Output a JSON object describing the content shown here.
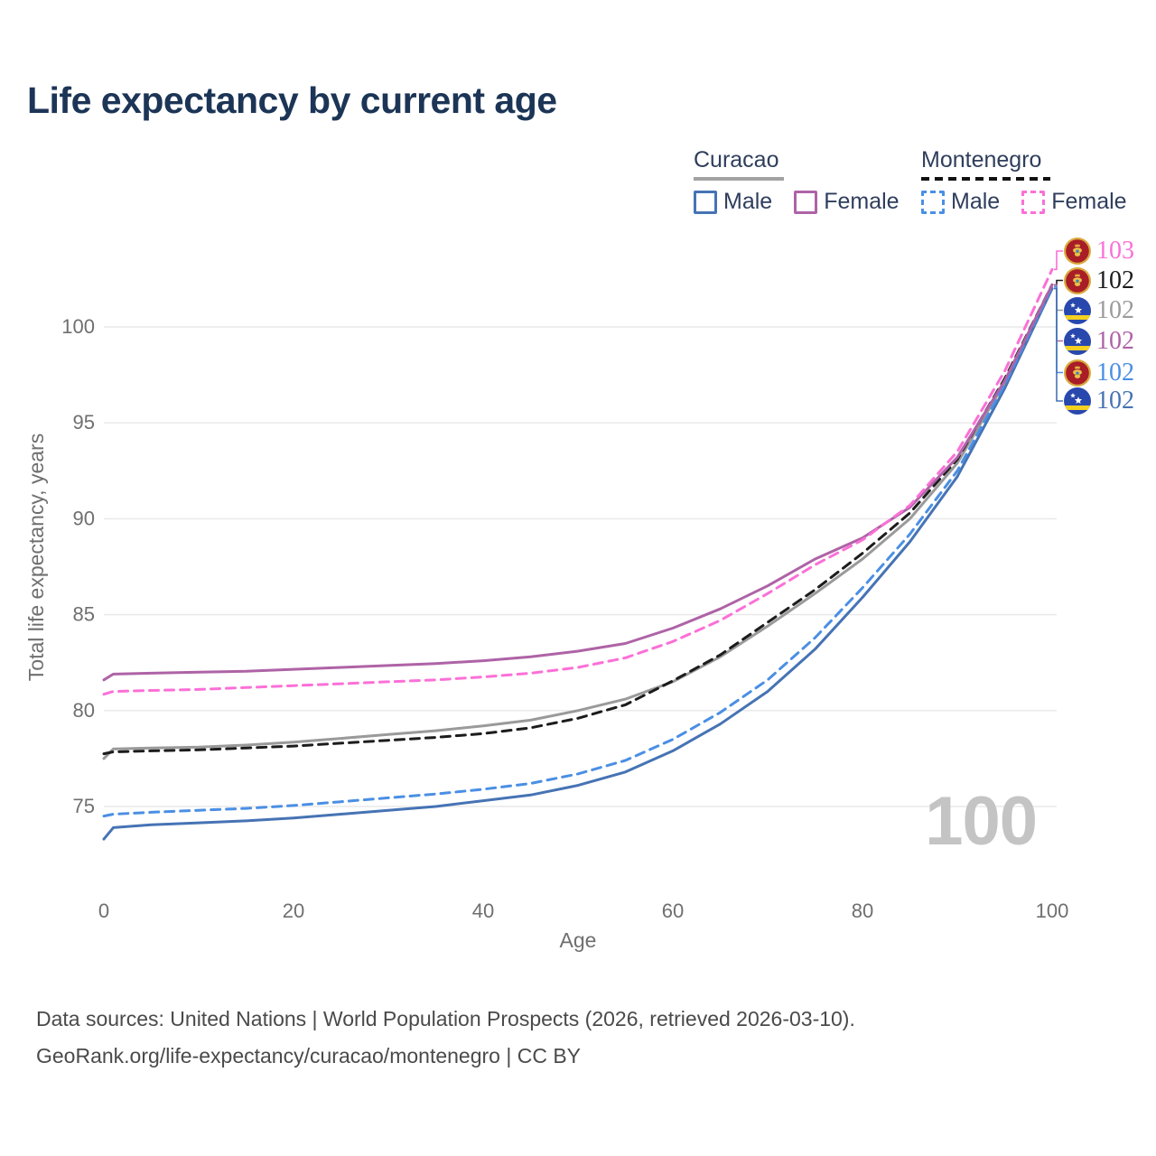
{
  "title": "Life expectancy by current age",
  "watermark": "100",
  "colors": {
    "title_text": "#1c3556",
    "legend_text": "#2f3e5c",
    "grid": "#e8e8e8",
    "axis_text": "#6f6f6f",
    "watermark_gray": "#c4c4c4",
    "footer_text": "#4a4a4a"
  },
  "legend": {
    "groups": [
      {
        "name": "Curacao",
        "line_style": "solid",
        "underline_color": "#a2a2a2",
        "items": [
          {
            "label": "Male",
            "series": "curacao_male"
          },
          {
            "label": "Female",
            "series": "curacao_female"
          }
        ]
      },
      {
        "name": "Montenegro",
        "line_style": "dashed",
        "underline_color": "#111111",
        "items": [
          {
            "label": "Male",
            "series": "montenegro_male"
          },
          {
            "label": "Female",
            "series": "montenegro_female"
          }
        ]
      }
    ]
  },
  "chart_data": {
    "type": "line",
    "title": "Life expectancy by current age",
    "xlabel": "Age",
    "ylabel": "Total life expectancy, years",
    "xticks": [
      0,
      20,
      40,
      60,
      80,
      100
    ],
    "yticks": [
      75,
      80,
      85,
      90,
      95,
      100
    ],
    "xlim": [
      0,
      100
    ],
    "ylim": [
      72.5,
      104
    ],
    "grid": "horizontal",
    "ages": [
      0,
      1,
      5,
      10,
      15,
      20,
      25,
      30,
      35,
      40,
      45,
      50,
      55,
      60,
      65,
      70,
      75,
      80,
      85,
      90,
      95,
      100
    ],
    "series": [
      {
        "key": "curacao_total",
        "name": "Curacao Total",
        "color": "#9a9a9a",
        "dash": false,
        "values": [
          77.5,
          78.0,
          78.05,
          78.1,
          78.2,
          78.35,
          78.55,
          78.75,
          78.95,
          79.2,
          79.5,
          80.0,
          80.6,
          81.5,
          82.8,
          84.4,
          86.1,
          87.9,
          90.0,
          92.9,
          97.1,
          102.0
        ]
      },
      {
        "key": "montenegro_total",
        "name": "Montenegro Total",
        "color": "#1c1c1c",
        "dash": true,
        "values": [
          77.75,
          77.85,
          77.9,
          77.95,
          78.05,
          78.15,
          78.3,
          78.45,
          78.6,
          78.8,
          79.1,
          79.6,
          80.3,
          81.55,
          82.9,
          84.6,
          86.3,
          88.2,
          90.3,
          93.1,
          97.3,
          102.2
        ]
      },
      {
        "key": "curacao_male",
        "name": "Curacao Male",
        "color": "#4673b4",
        "dash": false,
        "values": [
          73.3,
          73.9,
          74.05,
          74.15,
          74.25,
          74.4,
          74.6,
          74.8,
          75.0,
          75.3,
          75.6,
          76.1,
          76.8,
          77.9,
          79.3,
          81.0,
          83.2,
          85.9,
          88.8,
          92.2,
          96.8,
          102.0
        ]
      },
      {
        "key": "montenegro_male",
        "name": "Montenegro Male",
        "color": "#4a8fe4",
        "dash": true,
        "values": [
          74.5,
          74.6,
          74.7,
          74.8,
          74.9,
          75.05,
          75.25,
          75.45,
          75.65,
          75.9,
          76.2,
          76.7,
          77.4,
          78.5,
          79.9,
          81.6,
          83.8,
          86.4,
          89.2,
          92.5,
          97.0,
          102.1
        ]
      },
      {
        "key": "curacao_female",
        "name": "Curacao Female",
        "color": "#ae63a6",
        "dash": false,
        "values": [
          81.6,
          81.9,
          81.95,
          82.0,
          82.05,
          82.15,
          82.25,
          82.35,
          82.45,
          82.6,
          82.8,
          83.1,
          83.5,
          84.3,
          85.3,
          86.5,
          87.9,
          89.0,
          90.6,
          93.2,
          97.2,
          102.2
        ]
      },
      {
        "key": "montenegro_female",
        "name": "Montenegro Female",
        "color": "#fb70d7",
        "dash": true,
        "values": [
          80.85,
          81.0,
          81.05,
          81.1,
          81.2,
          81.3,
          81.4,
          81.5,
          81.6,
          81.75,
          81.95,
          82.25,
          82.75,
          83.6,
          84.7,
          86.1,
          87.6,
          88.9,
          90.7,
          93.5,
          97.7,
          103.0
        ]
      }
    ]
  },
  "end_labels": [
    {
      "series": "montenegro_female",
      "flag": "montenegro",
      "value": "103",
      "color": "#fb70d7"
    },
    {
      "series": "montenegro_total",
      "flag": "montenegro",
      "value": "102",
      "color": "#1c1c1c"
    },
    {
      "series": "curacao_total",
      "flag": "curacao",
      "value": "102",
      "color": "#9b9b9b"
    },
    {
      "series": "curacao_female",
      "flag": "curacao",
      "value": "102",
      "color": "#ae63a6"
    },
    {
      "series": "montenegro_male",
      "flag": "montenegro",
      "value": "102",
      "color": "#4a8fe4"
    },
    {
      "series": "curacao_male",
      "flag": "curacao",
      "value": "102",
      "color": "#4673b4"
    }
  ],
  "flag_colors": {
    "curacao_blue": "#2948ad",
    "curacao_yellow": "#f5d020",
    "montenegro_red": "#a91d27",
    "montenegro_gold": "#d9a93c"
  },
  "footer": {
    "line1": "Data sources: United Nations | World Population Prospects (2026, retrieved 2026-03-10).",
    "line2": "GeoRank.org/life-expectancy/curacao/montenegro | CC BY"
  }
}
